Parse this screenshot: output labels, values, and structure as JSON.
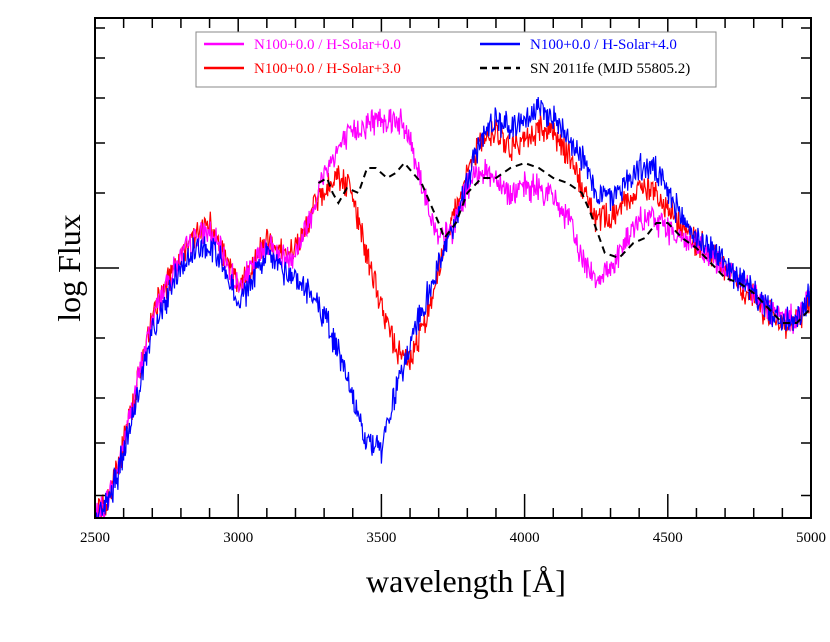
{
  "chart_data": {
    "type": "line",
    "xlabel": "wavelength [Å]",
    "ylabel": "log Flux",
    "xlim": [
      2500,
      5000
    ],
    "ylim": [
      0,
      10
    ],
    "x_ticks": [
      2500,
      3000,
      3500,
      4000,
      4500,
      5000
    ],
    "grid": false,
    "legend_position": "top-center",
    "series": [
      {
        "name": "N100+0.0 / H-Solar+0.0",
        "color": "#ff00ff",
        "dash": "solid",
        "noise": 0.5,
        "x": [
          2500,
          2540,
          2580,
          2620,
          2660,
          2700,
          2750,
          2800,
          2850,
          2900,
          2950,
          3000,
          3050,
          3100,
          3150,
          3200,
          3250,
          3300,
          3350,
          3400,
          3450,
          3500,
          3550,
          3600,
          3650,
          3700,
          3750,
          3800,
          3850,
          3900,
          3950,
          4000,
          4050,
          4100,
          4150,
          4200,
          4250,
          4300,
          4350,
          4400,
          4450,
          4500,
          4550,
          4600,
          4650,
          4700,
          4750,
          4800,
          4850,
          4900,
          4950,
          5000
        ],
        "y": [
          0.0,
          0.3,
          1.0,
          2.0,
          3.0,
          4.0,
          4.7,
          5.2,
          5.6,
          5.7,
          5.2,
          4.6,
          5.0,
          5.5,
          5.2,
          5.3,
          6.0,
          6.9,
          7.4,
          7.7,
          7.9,
          8.0,
          8.0,
          7.6,
          6.5,
          5.5,
          5.8,
          6.6,
          7.0,
          6.8,
          6.5,
          6.6,
          6.6,
          6.4,
          6.0,
          5.2,
          4.8,
          5.0,
          5.5,
          5.9,
          6.0,
          5.8,
          5.6,
          5.4,
          5.2,
          5.0,
          4.7,
          4.5,
          4.2,
          4.0,
          4.0,
          4.5
        ]
      },
      {
        "name": "N100+0.0 / H-Solar+3.0",
        "color": "#ff0000",
        "dash": "solid",
        "noise": 0.5,
        "x": [
          2500,
          2540,
          2580,
          2620,
          2660,
          2700,
          2750,
          2800,
          2850,
          2900,
          2950,
          3000,
          3050,
          3100,
          3150,
          3200,
          3250,
          3300,
          3350,
          3400,
          3450,
          3500,
          3550,
          3600,
          3650,
          3700,
          3750,
          3800,
          3850,
          3900,
          3950,
          4000,
          4050,
          4100,
          4150,
          4200,
          4250,
          4300,
          4350,
          4400,
          4450,
          4500,
          4550,
          4600,
          4650,
          4700,
          4750,
          4800,
          4850,
          4900,
          4950,
          5000
        ],
        "y": [
          0.0,
          0.3,
          1.0,
          2.0,
          3.0,
          4.0,
          4.7,
          5.2,
          5.7,
          5.9,
          5.3,
          4.6,
          5.1,
          5.6,
          5.3,
          5.4,
          6.0,
          6.6,
          6.9,
          6.4,
          5.2,
          4.2,
          3.4,
          3.2,
          3.9,
          5.0,
          6.0,
          7.0,
          7.6,
          7.7,
          7.4,
          7.6,
          7.8,
          7.7,
          7.3,
          6.7,
          6.0,
          6.0,
          6.3,
          6.6,
          6.6,
          6.2,
          5.8,
          5.5,
          5.3,
          5.0,
          4.7,
          4.4,
          4.1,
          3.9,
          3.9,
          4.5
        ]
      },
      {
        "name": "N100+0.0 / H-Solar+4.0",
        "color": "#0000ff",
        "dash": "solid",
        "noise": 0.5,
        "x": [
          2500,
          2540,
          2580,
          2620,
          2660,
          2700,
          2750,
          2800,
          2850,
          2900,
          2950,
          3000,
          3050,
          3100,
          3150,
          3200,
          3250,
          3300,
          3350,
          3400,
          3450,
          3500,
          3550,
          3600,
          3650,
          3700,
          3750,
          3800,
          3850,
          3900,
          3950,
          4000,
          4050,
          4100,
          4150,
          4200,
          4250,
          4300,
          4350,
          4400,
          4450,
          4500,
          4550,
          4600,
          4650,
          4700,
          4750,
          4800,
          4850,
          4900,
          4950,
          5000
        ],
        "y": [
          0.0,
          0.3,
          0.9,
          1.8,
          2.8,
          3.7,
          4.4,
          5.0,
          5.4,
          5.5,
          5.0,
          4.3,
          4.7,
          5.3,
          5.0,
          4.8,
          4.5,
          4.0,
          3.4,
          2.5,
          1.5,
          1.4,
          2.5,
          3.5,
          4.3,
          5.0,
          5.8,
          6.8,
          7.6,
          8.0,
          7.8,
          8.0,
          8.2,
          8.0,
          7.7,
          7.2,
          6.5,
          6.4,
          6.7,
          7.0,
          7.0,
          6.5,
          6.0,
          5.6,
          5.4,
          5.1,
          4.8,
          4.5,
          4.2,
          3.9,
          3.9,
          4.5
        ]
      },
      {
        "name": "SN 2011fe (MJD 55805.2)",
        "color": "#000000",
        "dash": "dashed",
        "noise": 0,
        "x": [
          3280,
          3310,
          3330,
          3350,
          3380,
          3420,
          3450,
          3480,
          3520,
          3550,
          3580,
          3610,
          3640,
          3670,
          3700,
          3720,
          3760,
          3800,
          3850,
          3900,
          3950,
          4000,
          4050,
          4100,
          4150,
          4200,
          4230,
          4280,
          4330,
          4380,
          4420,
          4460,
          4500,
          4550,
          4600,
          4650,
          4700,
          4750,
          4800,
          4850,
          4900,
          4950,
          5000
        ],
        "y": [
          6.7,
          6.8,
          6.5,
          6.3,
          6.6,
          6.5,
          7.0,
          7.0,
          6.8,
          6.9,
          7.1,
          6.9,
          6.7,
          6.3,
          5.9,
          5.6,
          5.9,
          6.5,
          6.8,
          6.8,
          7.0,
          7.1,
          7.0,
          6.8,
          6.7,
          6.5,
          6.1,
          5.3,
          5.2,
          5.5,
          5.6,
          5.9,
          5.9,
          5.6,
          5.4,
          5.1,
          4.8,
          4.7,
          4.5,
          4.2,
          3.9,
          3.9,
          4.2
        ]
      }
    ]
  }
}
